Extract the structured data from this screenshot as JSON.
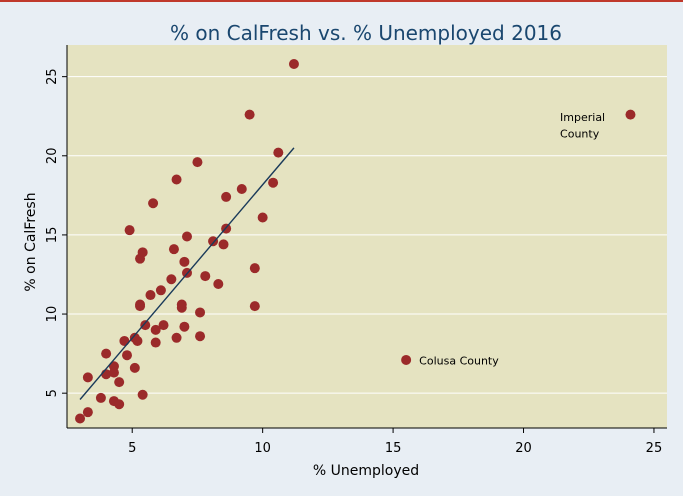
{
  "chart_data": {
    "type": "scatter",
    "title": "% on CalFresh vs. % Unemployed 2016",
    "xlabel": "% Unemployed",
    "ylabel": "% on CalFresh",
    "xlim": [
      2.5,
      25.5
    ],
    "ylim": [
      2.8,
      27.0
    ],
    "xticks": [
      5,
      10,
      15,
      20,
      25
    ],
    "yticks": [
      5,
      10,
      15,
      20,
      25
    ],
    "grid": true,
    "legend": "none",
    "colors": {
      "plot_bg": "#e5e3c1",
      "outer_bg": "#e8eef4",
      "marker": "#9b2a2a",
      "fit_line": "#1a3a5a",
      "grid": "#ffffff",
      "title": "#1a476f"
    },
    "points": [
      {
        "x": 11.2,
        "y": 25.8
      },
      {
        "x": 9.5,
        "y": 22.6
      },
      {
        "x": 24.1,
        "y": 22.6
      },
      {
        "x": 10.6,
        "y": 20.2
      },
      {
        "x": 7.5,
        "y": 19.6
      },
      {
        "x": 6.7,
        "y": 18.5
      },
      {
        "x": 10.4,
        "y": 18.3
      },
      {
        "x": 9.2,
        "y": 17.9
      },
      {
        "x": 8.6,
        "y": 17.4
      },
      {
        "x": 5.8,
        "y": 17.0
      },
      {
        "x": 10.0,
        "y": 16.1
      },
      {
        "x": 4.9,
        "y": 15.3
      },
      {
        "x": 8.6,
        "y": 15.4
      },
      {
        "x": 7.1,
        "y": 14.9
      },
      {
        "x": 8.1,
        "y": 14.6
      },
      {
        "x": 8.5,
        "y": 14.4
      },
      {
        "x": 6.6,
        "y": 14.1
      },
      {
        "x": 5.4,
        "y": 13.9
      },
      {
        "x": 5.3,
        "y": 13.5
      },
      {
        "x": 7.0,
        "y": 13.3
      },
      {
        "x": 9.7,
        "y": 12.9
      },
      {
        "x": 7.1,
        "y": 12.6
      },
      {
        "x": 7.8,
        "y": 12.4
      },
      {
        "x": 6.5,
        "y": 12.2
      },
      {
        "x": 8.3,
        "y": 11.9
      },
      {
        "x": 6.1,
        "y": 11.5
      },
      {
        "x": 5.7,
        "y": 11.2
      },
      {
        "x": 5.3,
        "y": 10.6
      },
      {
        "x": 5.3,
        "y": 10.5
      },
      {
        "x": 6.9,
        "y": 10.6
      },
      {
        "x": 6.9,
        "y": 10.4
      },
      {
        "x": 9.7,
        "y": 10.5
      },
      {
        "x": 7.6,
        "y": 10.1
      },
      {
        "x": 5.5,
        "y": 9.3
      },
      {
        "x": 6.2,
        "y": 9.3
      },
      {
        "x": 5.9,
        "y": 9.0
      },
      {
        "x": 7.0,
        "y": 9.2
      },
      {
        "x": 4.7,
        "y": 8.3
      },
      {
        "x": 5.1,
        "y": 8.5
      },
      {
        "x": 5.2,
        "y": 8.3
      },
      {
        "x": 5.9,
        "y": 8.2
      },
      {
        "x": 6.7,
        "y": 8.5
      },
      {
        "x": 7.6,
        "y": 8.6
      },
      {
        "x": 4.0,
        "y": 7.5
      },
      {
        "x": 4.8,
        "y": 7.4
      },
      {
        "x": 15.5,
        "y": 7.1
      },
      {
        "x": 4.3,
        "y": 6.7
      },
      {
        "x": 5.1,
        "y": 6.6
      },
      {
        "x": 4.0,
        "y": 6.2
      },
      {
        "x": 3.3,
        "y": 6.0
      },
      {
        "x": 4.3,
        "y": 6.3
      },
      {
        "x": 4.5,
        "y": 5.7
      },
      {
        "x": 3.8,
        "y": 4.7
      },
      {
        "x": 4.3,
        "y": 4.5
      },
      {
        "x": 4.5,
        "y": 4.3
      },
      {
        "x": 5.4,
        "y": 4.9
      },
      {
        "x": 3.3,
        "y": 3.8
      },
      {
        "x": 3.0,
        "y": 3.4
      }
    ],
    "fit_line": {
      "x": [
        3.0,
        11.2
      ],
      "y": [
        4.6,
        20.5
      ]
    },
    "annotations": [
      {
        "text_lines": [
          "Imperial",
          "County"
        ],
        "x": 21.4,
        "y": 22.2,
        "lh": 1.05
      },
      {
        "text_lines": [
          "Colusa County"
        ],
        "x": 16.0,
        "y": 6.8,
        "lh": 1.05
      }
    ]
  }
}
